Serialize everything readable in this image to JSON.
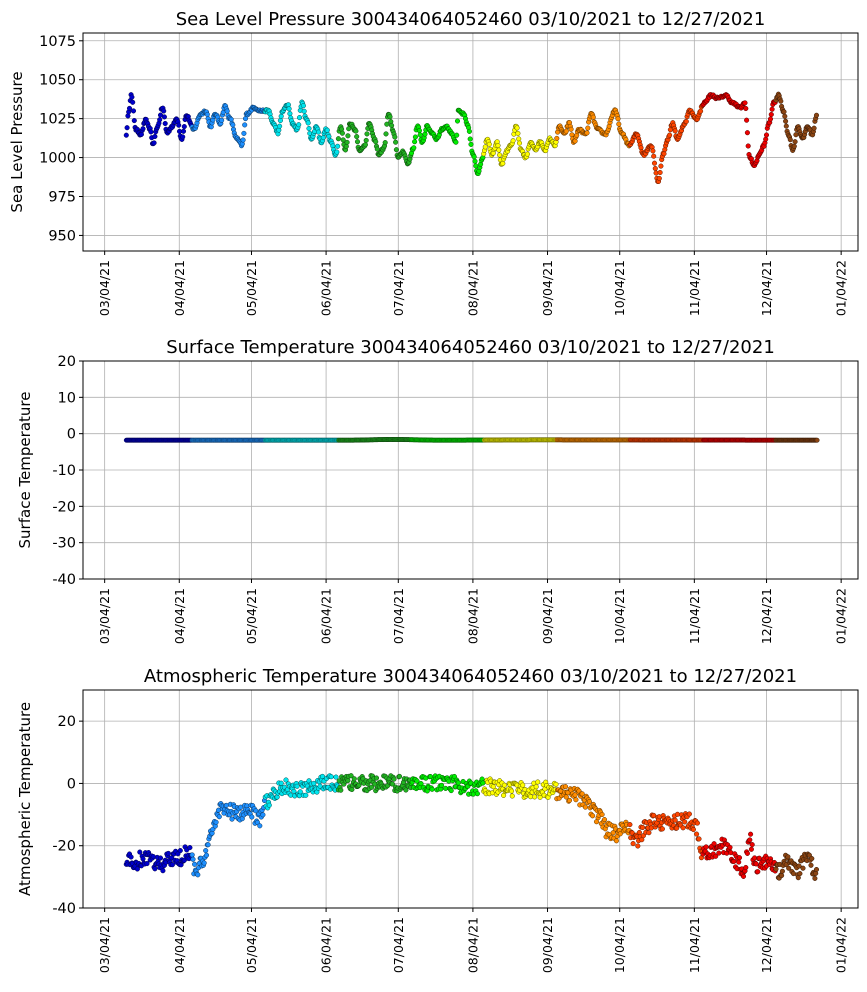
{
  "chart_data": [
    {
      "type": "scatter",
      "title": "Sea Level Pressure 300434064052460  03/10/2021 to 12/27/2021",
      "ylabel": "Sea Level Pressure",
      "ylim": [
        940,
        1080
      ],
      "yticks": [
        950,
        975,
        1000,
        1025,
        1050,
        1075
      ],
      "month_colors": [
        "#0000cc",
        "#1e90ff",
        "#00e5ee",
        "#22b422",
        "#00ee00",
        "#ffff00",
        "#ff8c00",
        "#ff4500",
        "#ee0000",
        "#8b4513"
      ],
      "anchors": [
        [
          9,
          1015
        ],
        [
          10,
          1030
        ],
        [
          11,
          1040
        ],
        [
          13,
          1018
        ],
        [
          15,
          1015
        ],
        [
          17,
          1024
        ],
        [
          19,
          1018
        ],
        [
          20,
          1008
        ],
        [
          22,
          1020
        ],
        [
          24,
          1032
        ],
        [
          26,
          1016
        ],
        [
          28,
          1020
        ],
        [
          30,
          1025
        ],
        [
          32,
          1012
        ],
        [
          34,
          1027
        ],
        [
          37,
          1018
        ],
        [
          40,
          1028
        ],
        [
          42,
          1030
        ],
        [
          44,
          1020
        ],
        [
          46,
          1028
        ],
        [
          48,
          1022
        ],
        [
          50,
          1033
        ],
        [
          52,
          1025
        ],
        [
          55,
          1012
        ],
        [
          57,
          1008
        ],
        [
          59,
          1028
        ],
        [
          62,
          1032
        ],
        [
          65,
          1030
        ],
        [
          68,
          1030
        ],
        [
          70,
          1022
        ],
        [
          72,
          1016
        ],
        [
          74,
          1030
        ],
        [
          76,
          1034
        ],
        [
          78,
          1022
        ],
        [
          80,
          1018
        ],
        [
          82,
          1035
        ],
        [
          84,
          1024
        ],
        [
          86,
          1012
        ],
        [
          88,
          1020
        ],
        [
          90,
          1010
        ],
        [
          92,
          1018
        ],
        [
          94,
          1010
        ],
        [
          96,
          1002
        ],
        [
          98,
          1020
        ],
        [
          100,
          1005
        ],
        [
          102,
          1022
        ],
        [
          104,
          1018
        ],
        [
          106,
          1004
        ],
        [
          108,
          1008
        ],
        [
          110,
          1022
        ],
        [
          112,
          1012
        ],
        [
          114,
          1002
        ],
        [
          116,
          1006
        ],
        [
          118,
          1028
        ],
        [
          120,
          1016
        ],
        [
          122,
          1000
        ],
        [
          124,
          1004
        ],
        [
          126,
          996
        ],
        [
          128,
          1005
        ],
        [
          130,
          1020
        ],
        [
          132,
          1010
        ],
        [
          134,
          1020
        ],
        [
          136,
          1016
        ],
        [
          138,
          1012
        ],
        [
          140,
          1018
        ],
        [
          142,
          1020
        ],
        [
          144,
          1016
        ],
        [
          146,
          1010
        ],
        [
          147,
          1030
        ],
        [
          149,
          1028
        ],
        [
          151,
          1020
        ],
        [
          153,
          1002
        ],
        [
          155,
          990
        ],
        [
          157,
          1000
        ],
        [
          159,
          1012
        ],
        [
          161,
          1002
        ],
        [
          163,
          1010
        ],
        [
          165,
          996
        ],
        [
          167,
          1004
        ],
        [
          169,
          1008
        ],
        [
          171,
          1020
        ],
        [
          173,
          1005
        ],
        [
          175,
          1000
        ],
        [
          177,
          1010
        ],
        [
          179,
          1005
        ],
        [
          181,
          1010
        ],
        [
          183,
          1005
        ],
        [
          185,
          1012
        ],
        [
          187,
          1008
        ],
        [
          189,
          1020
        ],
        [
          191,
          1015
        ],
        [
          193,
          1022
        ],
        [
          195,
          1010
        ],
        [
          197,
          1018
        ],
        [
          200,
          1015
        ],
        [
          202,
          1028
        ],
        [
          205,
          1018
        ],
        [
          208,
          1015
        ],
        [
          212,
          1030
        ],
        [
          215,
          1015
        ],
        [
          218,
          1008
        ],
        [
          221,
          1015
        ],
        [
          224,
          1002
        ],
        [
          227,
          1008
        ],
        [
          230,
          985
        ],
        [
          232,
          1002
        ],
        [
          234,
          1012
        ],
        [
          236,
          1022
        ],
        [
          238,
          1012
        ],
        [
          241,
          1022
        ],
        [
          243,
          1030
        ],
        [
          246,
          1025
        ],
        [
          249,
          1035
        ],
        [
          252,
          1040
        ],
        [
          255,
          1038
        ],
        [
          258,
          1040
        ],
        [
          261,
          1035
        ],
        [
          264,
          1032
        ],
        [
          266,
          1035
        ],
        [
          268,
          1000
        ],
        [
          270,
          995
        ],
        [
          272,
          1002
        ],
        [
          274,
          1008
        ],
        [
          276,
          1022
        ],
        [
          278,
          1035
        ],
        [
          280,
          1040
        ],
        [
          282,
          1030
        ],
        [
          284,
          1015
        ],
        [
          286,
          1005
        ],
        [
          288,
          1020
        ],
        [
          290,
          1012
        ],
        [
          292,
          1020
        ],
        [
          294,
          1015
        ],
        [
          296,
          1028
        ]
      ]
    },
    {
      "type": "scatter",
      "title": "Surface Temperature 300434064052460  03/10/2021 to 12/27/2021",
      "ylabel": "Surface Temperature",
      "ylim": [
        -40,
        20
      ],
      "yticks": [
        -40,
        -30,
        -20,
        -10,
        0,
        10,
        20
      ],
      "month_colors": [
        "#0000cc",
        "#1e90ff",
        "#00e5ee",
        "#22b422",
        "#00ee00",
        "#ffff00",
        "#ff8c00",
        "#ff4500",
        "#ee0000",
        "#8b4513"
      ],
      "anchors": [
        [
          9,
          -1.8
        ],
        [
          100,
          -1.8
        ],
        [
          120,
          -1.6
        ],
        [
          140,
          -1.8
        ],
        [
          180,
          -1.7
        ],
        [
          296,
          -1.8
        ]
      ]
    },
    {
      "type": "scatter",
      "title": "Atmospheric Temperature 300434064052460  03/10/2021 to 12/27/2021",
      "ylabel": "Atmospheric Temperature",
      "ylim": [
        -40,
        30
      ],
      "yticks": [
        -40,
        -20,
        0,
        20
      ],
      "month_colors": [
        "#0000cc",
        "#1e90ff",
        "#00e5ee",
        "#22b422",
        "#00ee00",
        "#ffff00",
        "#ff8c00",
        "#ff4500",
        "#ee0000",
        "#8b4513"
      ],
      "anchors": [
        [
          9,
          -24
        ],
        [
          12,
          -26
        ],
        [
          16,
          -24
        ],
        [
          20,
          -25
        ],
        [
          24,
          -26
        ],
        [
          28,
          -24
        ],
        [
          31,
          -24
        ],
        [
          35,
          -22
        ],
        [
          38,
          -28
        ],
        [
          42,
          -24
        ],
        [
          44,
          -16
        ],
        [
          46,
          -12
        ],
        [
          48,
          -8
        ],
        [
          52,
          -9
        ],
        [
          56,
          -10
        ],
        [
          60,
          -8
        ],
        [
          64,
          -12
        ],
        [
          67,
          -6
        ],
        [
          70,
          -3
        ],
        [
          74,
          -1
        ],
        [
          78,
          -2
        ],
        [
          82,
          -2
        ],
        [
          86,
          -1
        ],
        [
          90,
          0
        ],
        [
          96,
          0
        ],
        [
          104,
          0
        ],
        [
          112,
          0
        ],
        [
          120,
          0
        ],
        [
          128,
          0
        ],
        [
          136,
          0
        ],
        [
          144,
          0
        ],
        [
          152,
          -1
        ],
        [
          160,
          -1
        ],
        [
          168,
          -2
        ],
        [
          176,
          -2
        ],
        [
          184,
          -2
        ],
        [
          190,
          -3
        ],
        [
          196,
          -4
        ],
        [
          200,
          -6
        ],
        [
          205,
          -10
        ],
        [
          209,
          -15
        ],
        [
          213,
          -16
        ],
        [
          217,
          -14
        ],
        [
          221,
          -18
        ],
        [
          225,
          -14
        ],
        [
          229,
          -12
        ],
        [
          234,
          -13
        ],
        [
          238,
          -12
        ],
        [
          242,
          -12
        ],
        [
          246,
          -14
        ],
        [
          248,
          -22
        ],
        [
          252,
          -22
        ],
        [
          256,
          -20
        ],
        [
          260,
          -22
        ],
        [
          263,
          -26
        ],
        [
          266,
          -28
        ],
        [
          268,
          -16
        ],
        [
          270,
          -26
        ],
        [
          273,
          -26
        ],
        [
          276,
          -24
        ],
        [
          280,
          -28
        ],
        [
          284,
          -25
        ],
        [
          288,
          -28
        ],
        [
          292,
          -24
        ],
        [
          296,
          -30
        ]
      ]
    }
  ],
  "xticks": [
    "03/04/21",
    "04/04/21",
    "05/04/21",
    "06/04/21",
    "07/04/21",
    "08/04/21",
    "09/04/21",
    "10/04/21",
    "11/04/21",
    "12/04/21",
    "01/04/22"
  ],
  "xticks_days": [
    0,
    31,
    61,
    92,
    122,
    153,
    184,
    214,
    245,
    275,
    306
  ]
}
